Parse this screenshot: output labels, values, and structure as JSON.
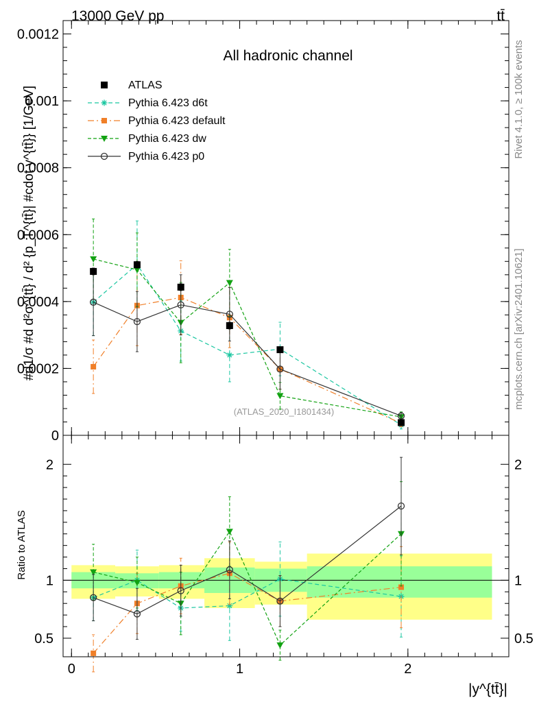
{
  "header": {
    "left": "13000 GeV pp",
    "right": "tt̄"
  },
  "side_texts": {
    "rivet": "Rivet 4.1.0, ≥ 100k events",
    "mcplots": "mcplots.cern.ch [arXiv:2401.10621]"
  },
  "colors": {
    "atlas": "#000000",
    "d6t": "#19c6a0",
    "default": "#f07f28",
    "dw": "#12a212",
    "p0": "#333333",
    "band_inner": "#99ff99",
    "band_outer": "#ffff88"
  },
  "chart_data": [
    {
      "type": "line",
      "title": "All hadronic channel",
      "watermark": "(ATLAS_2020_I1801434)",
      "ylabel": "#d1/σ #d d²σ^{tt̄} / d² {p_T^{tt̄}| #cdot y^{tt̄}} [1/GeV]",
      "ylim": [
        0,
        0.00124
      ],
      "yticks": [
        {
          "value": 0,
          "label": "0"
        },
        {
          "value": 0.0002,
          "label": "0.0002"
        },
        {
          "value": 0.0004,
          "label": "0.0004"
        },
        {
          "value": 0.0006,
          "label": "0.0006"
        },
        {
          "value": 0.0008,
          "label": "0.0008"
        },
        {
          "value": 0.001,
          "label": "0.001"
        },
        {
          "value": 0.0012,
          "label": "0.0012"
        }
      ],
      "xlim": [
        -0.05,
        2.6
      ],
      "legend": [
        {
          "key": "atlas",
          "label": "ATLAS"
        },
        {
          "key": "d6t",
          "label": "Pythia 6.423 d6t"
        },
        {
          "key": "default",
          "label": "Pythia 6.423 default"
        },
        {
          "key": "dw",
          "label": "Pythia 6.423 dw"
        },
        {
          "key": "p0",
          "label": "Pythia 6.423 p0"
        }
      ],
      "x": [
        0.13,
        0.39,
        0.65,
        0.94,
        1.24,
        1.96
      ],
      "data": {
        "name": "ATLAS",
        "values": [
          0.00049,
          0.00051,
          0.000443,
          0.000328,
          0.000256,
          3.8e-05
        ],
        "errors": [
          1e-05,
          1e-05,
          1e-05,
          1e-05,
          8e-06,
          3e-06
        ]
      },
      "series": [
        {
          "key": "d6t",
          "name": "Pythia 6.423 d6t",
          "marker": "star",
          "dash": "6,4",
          "values": [
            0.000398,
            0.000511,
            0.000312,
            0.00024,
            0.000258,
            3.1e-05
          ],
          "errors": [
            0.0001,
            0.00013,
            9e-05,
            8e-05,
            8e-05,
            1.2e-05
          ]
        },
        {
          "key": "default",
          "name": "Pythia 6.423 default",
          "marker": "square",
          "dash": "9,4,2,4",
          "values": [
            0.000205,
            0.000388,
            0.000412,
            0.000352,
            0.000198,
            3.6e-05
          ],
          "errors": [
            8e-05,
            0.00012,
            0.00011,
            9e-05,
            6e-05,
            1e-05
          ]
        },
        {
          "key": "dw",
          "name": "Pythia 6.423 dw",
          "marker": "triangle",
          "dash": "5,3",
          "values": [
            0.000527,
            0.000495,
            0.000337,
            0.000456,
            0.000118,
            5.5e-05
          ],
          "errors": [
            0.00012,
            0.00011,
            0.00012,
            0.0001,
            4e-05,
            1.5e-05
          ]
        },
        {
          "key": "p0",
          "name": "Pythia 6.423 p0",
          "marker": "circle",
          "dash": "",
          "values": [
            0.000398,
            0.00034,
            0.00039,
            0.000362,
            0.000198,
            5.8e-05
          ],
          "errors": [
            0.0001,
            9e-05,
            9e-05,
            8e-05,
            6e-05,
            1e-05
          ]
        }
      ]
    },
    {
      "type": "line",
      "title": "Ratio to ATLAS",
      "ylabel": "Ratio to ATLAS",
      "xlabel": "|y^{tt̄}|",
      "ylim": [
        0.34,
        2.25
      ],
      "yticks": [
        {
          "value": 0.5,
          "label": "0.5"
        },
        {
          "value": 1,
          "label": "1"
        },
        {
          "value": 2,
          "label": "2"
        }
      ],
      "xlim": [
        -0.05,
        2.6
      ],
      "xticks": [
        {
          "value": 0,
          "label": "0"
        },
        {
          "value": 1,
          "label": "1"
        },
        {
          "value": 2,
          "label": "2"
        }
      ],
      "bins": [
        {
          "lo": 0.0,
          "hi": 0.26,
          "inner": [
            0.93,
            1.07
          ],
          "outer": [
            0.84,
            1.13
          ]
        },
        {
          "lo": 0.26,
          "hi": 0.52,
          "inner": [
            0.93,
            1.06
          ],
          "outer": [
            0.86,
            1.12
          ]
        },
        {
          "lo": 0.52,
          "hi": 0.79,
          "inner": [
            0.93,
            1.07
          ],
          "outer": [
            0.84,
            1.13
          ]
        },
        {
          "lo": 0.79,
          "hi": 1.09,
          "inner": [
            0.89,
            1.11
          ],
          "outer": [
            0.76,
            1.19
          ]
        },
        {
          "lo": 1.09,
          "hi": 1.4,
          "inner": [
            0.9,
            1.1
          ],
          "outer": [
            0.79,
            1.16
          ]
        },
        {
          "lo": 1.4,
          "hi": 2.5,
          "inner": [
            0.85,
            1.12
          ],
          "outer": [
            0.66,
            1.23
          ]
        }
      ],
      "x": [
        0.13,
        0.39,
        0.65,
        0.94,
        1.24,
        1.96
      ],
      "series": [
        {
          "key": "d6t",
          "name": "Pythia 6.423 d6t",
          "marker": "star",
          "dash": "6,4",
          "values": [
            0.85,
            1.0,
            0.76,
            0.78,
            1.01,
            0.86
          ],
          "errors": [
            0.2,
            0.26,
            0.2,
            0.3,
            0.32,
            0.35
          ]
        },
        {
          "key": "default",
          "name": "Pythia 6.423 default",
          "marker": "square",
          "dash": "9,4,2,4",
          "values": [
            0.37,
            0.8,
            0.95,
            1.06,
            0.82,
            0.94
          ],
          "errors": [
            0.16,
            0.26,
            0.24,
            0.27,
            0.22,
            0.35
          ]
        },
        {
          "key": "dw",
          "name": "Pythia 6.423 dw",
          "marker": "triangle",
          "dash": "5,3",
          "values": [
            1.07,
            0.98,
            0.8,
            1.42,
            0.44,
            1.4
          ],
          "errors": [
            0.24,
            0.22,
            0.27,
            0.3,
            0.13,
            0.45
          ]
        },
        {
          "key": "p0",
          "name": "Pythia 6.423 p0",
          "marker": "circle",
          "dash": "",
          "values": [
            0.85,
            0.71,
            0.91,
            1.09,
            0.82,
            1.64
          ],
          "errors": [
            0.2,
            0.22,
            0.22,
            0.25,
            0.22,
            0.42
          ]
        }
      ]
    }
  ]
}
